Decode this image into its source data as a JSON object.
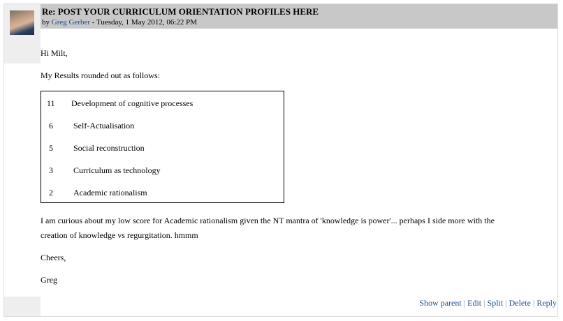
{
  "post": {
    "subject": "Re: POST YOUR CURRICULUM ORIENTATION PROFILES HERE",
    "by": "by ",
    "author": "Greg Gerber",
    "date": " - Tuesday, 1 May 2012, 06:22 PM"
  },
  "body": {
    "greeting": "Hi Milt,",
    "intro": "My Results rounded out as follows:",
    "results": [
      {
        "score": "11",
        "label": "Development of cognitive processes"
      },
      {
        "score": "6",
        "label": "Self-Actualisation"
      },
      {
        "score": "5",
        "label": "Social reconstruction"
      },
      {
        "score": "3",
        "label": "Curriculum as technology"
      },
      {
        "score": "2",
        "label": "Academic rationalism"
      }
    ],
    "para1": "I am curious about my low score for Academic rationalism given the NT mantra of 'knowledge is power'... perhaps I side more with the",
    "para2": "creation of knowledge vs regurgitation.  hmmm",
    "closing": "Cheers,",
    "signature": "Greg"
  },
  "footer": {
    "links": [
      "Show parent",
      "Edit",
      "Split",
      "Delete",
      "Reply"
    ],
    "separator": "|"
  },
  "colors": {
    "link": "#1f4e8c",
    "header_bg": "#c8c8c8",
    "side_bg": "#eeeeee"
  }
}
